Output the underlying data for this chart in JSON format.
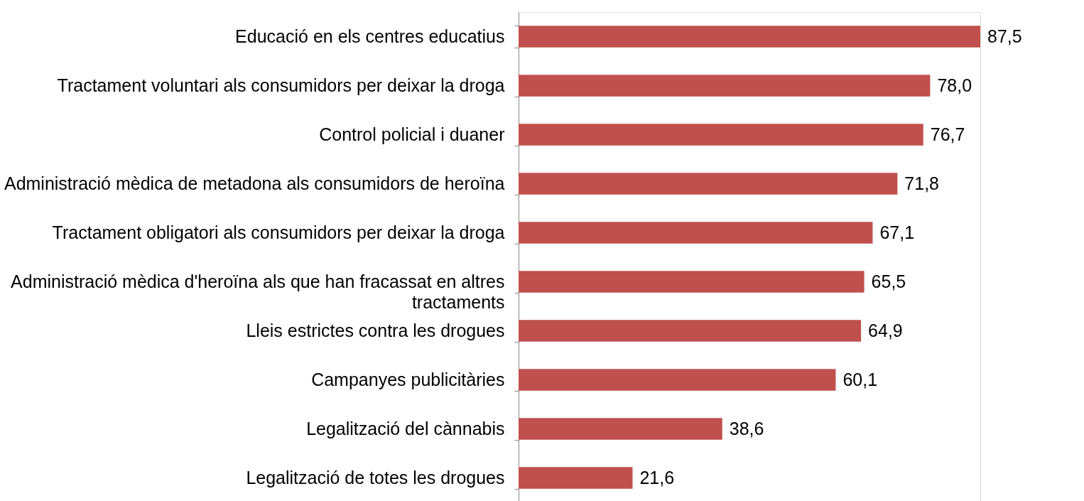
{
  "chart_data": {
    "type": "bar",
    "orientation": "horizontal",
    "categories": [
      "Educació en els centres educatius",
      "Tractament voluntari als consumidors per deixar la droga",
      "Control policial i duaner",
      "Administració mèdica de metadona als consumidors de heroïna",
      "Tractament obligatori als consumidors per deixar la droga",
      "Administració mèdica d'heroïna als que han fracassat en altres tractaments",
      "Lleis estrictes contra les drogues",
      "Campanyes publicitàries",
      "Legalització del cànnabis",
      "Legalització de totes les drogues"
    ],
    "values": [
      87.5,
      78.0,
      76.7,
      71.8,
      67.1,
      65.5,
      64.9,
      60.1,
      38.6,
      21.6
    ],
    "value_labels": [
      "87,5",
      "78,0",
      "76,7",
      "71,8",
      "67,1",
      "65,5",
      "64,9",
      "60,1",
      "38,6",
      "21,6"
    ],
    "color": "#c0504d",
    "grid": false,
    "tick_labels": "y"
  }
}
